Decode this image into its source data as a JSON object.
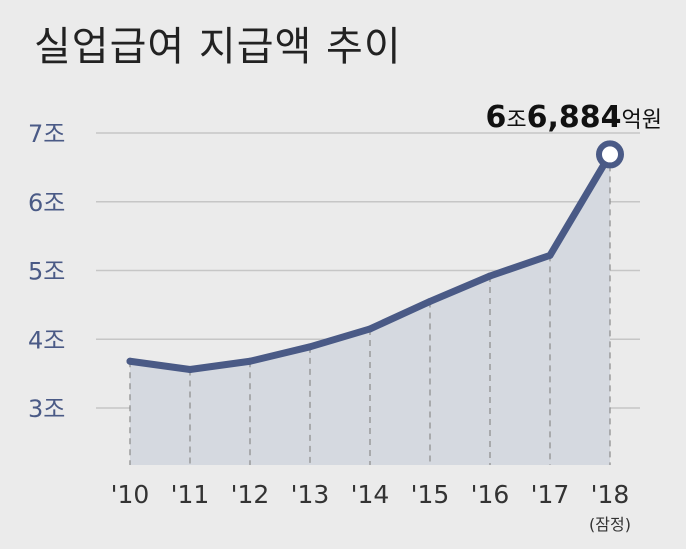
{
  "chart_data": {
    "type": "area",
    "title": "실업급여 지급액 추이",
    "categories": [
      "'10",
      "'11",
      "'12",
      "'13",
      "'14",
      "'15",
      "'16",
      "'17",
      "'18"
    ],
    "x_notes": [
      "",
      "",
      "",
      "",
      "",
      "",
      "",
      "",
      "(잠정)"
    ],
    "values": [
      3.68,
      3.56,
      3.68,
      3.89,
      4.15,
      4.55,
      4.92,
      5.22,
      6.6884
    ],
    "yticks": [
      {
        "value": 3,
        "label": "3조"
      },
      {
        "value": 4,
        "label": "4조"
      },
      {
        "value": 5,
        "label": "5조"
      },
      {
        "value": 6,
        "label": "6조"
      },
      {
        "value": 7,
        "label": "7조"
      }
    ],
    "ylim": [
      2.15,
      7.3
    ],
    "grid": true,
    "annotation": {
      "index": 8,
      "parts": [
        {
          "text": "6",
          "style": "num"
        },
        {
          "text": "조",
          "style": "unit"
        },
        {
          "text": "6,884",
          "style": "num"
        },
        {
          "text": "억원",
          "style": "unit"
        }
      ]
    },
    "colors": {
      "line": "#4a5a86",
      "area": "#d5d9e0",
      "grid": "#c6c6c6",
      "background": "#ebebeb",
      "marker_fill": "#ffffff"
    }
  }
}
